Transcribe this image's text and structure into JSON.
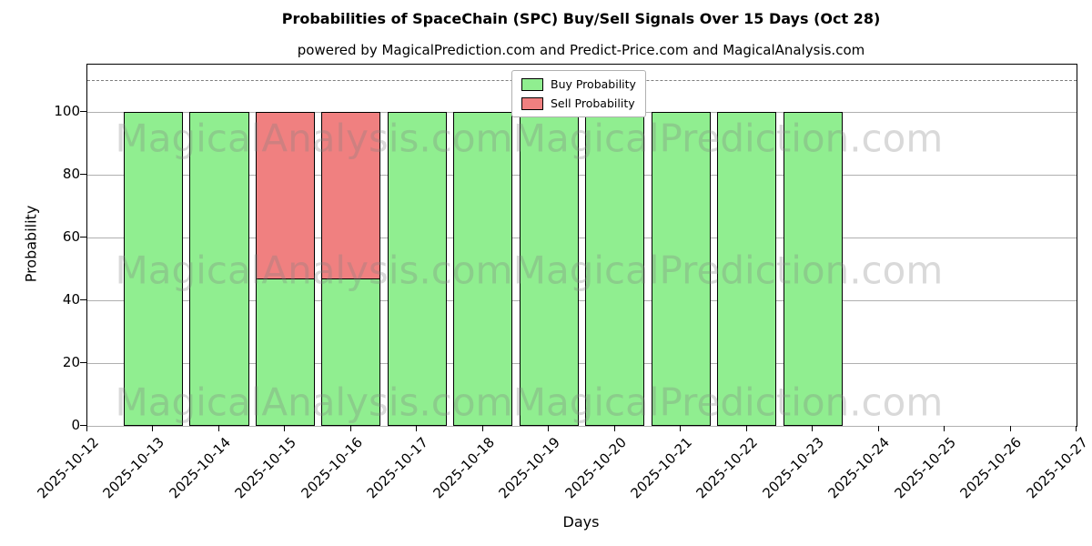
{
  "subtitle": "powered by MagicalPrediction.com and Predict-Price.com and MagicalAnalysis.com",
  "watermarks": {
    "left": "MagicalAnalysis.com",
    "right": "MagicalPrediction.com"
  },
  "legend": [
    {
      "label": "Buy Probability",
      "color": "#90ee90"
    },
    {
      "label": "Sell Probability",
      "color": "#f08080"
    }
  ],
  "chart_data": {
    "type": "bar",
    "stacked": true,
    "title": "Probabilities of SpaceChain (SPC) Buy/Sell Signals Over 15 Days (Oct 28)",
    "xlabel": "Days",
    "ylabel": "Probability",
    "categories": [
      "2025-10-12",
      "2025-10-13",
      "2025-10-14",
      "2025-10-15",
      "2025-10-16",
      "2025-10-17",
      "2025-10-18",
      "2025-10-19",
      "2025-10-20",
      "2025-10-21",
      "2025-10-22",
      "2025-10-23",
      "2025-10-24",
      "2025-10-25",
      "2025-10-26",
      "2025-10-27"
    ],
    "series": [
      {
        "name": "Buy Probability",
        "color": "#90ee90",
        "values": [
          0,
          100,
          100,
          47,
          47,
          100,
          100,
          100,
          100,
          100,
          100,
          100,
          0,
          0,
          0,
          0
        ]
      },
      {
        "name": "Sell Probability",
        "color": "#f08080",
        "values": [
          0,
          0,
          0,
          53,
          53,
          0,
          0,
          0,
          0,
          0,
          0,
          0,
          0,
          0,
          0,
          0
        ]
      }
    ],
    "yticks": [
      0,
      20,
      40,
      60,
      80,
      100
    ],
    "ylim": [
      0,
      115
    ],
    "dashed_line_y": 110,
    "grid": true,
    "legend_position": "upper center"
  }
}
